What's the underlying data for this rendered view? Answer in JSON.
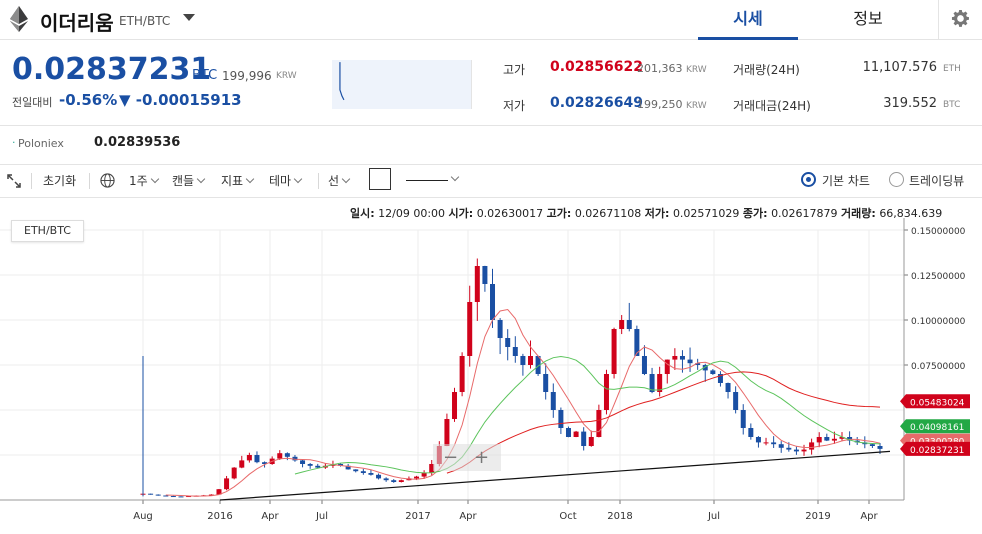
{
  "header": {
    "coin_name": "이더리움",
    "pair": "ETH/BTC",
    "tabs": [
      {
        "label": "시세"
      },
      {
        "label": "정보"
      }
    ]
  },
  "price": {
    "main": "0.02837231",
    "unit": "BTC",
    "krw": "199,996",
    "krw_unit": "KRW",
    "change_label": "전일대비",
    "change_pct": "-0.56%",
    "change_abs": "▼ -0.00015913"
  },
  "stats": {
    "high_label": "고가",
    "high_btc": "0.02856622",
    "high_krw": "201,363",
    "low_label": "저가",
    "low_btc": "0.02826649",
    "low_krw": "199,250",
    "krw_unit": "KRW",
    "volume_label": "거래량(24H)",
    "volume_value": "11,107.576",
    "volume_unit": "ETH",
    "amount_label": "거래대금(24H)",
    "amount_value": "319.552",
    "amount_unit": "BTC"
  },
  "exchange": {
    "name": "Poloniex",
    "price": "0.02839536"
  },
  "toolbar": {
    "reset": "초기화",
    "interval": "1주",
    "candle": "캔들",
    "indicator": "지표",
    "theme": "테마",
    "line": "선",
    "basic_chart": "기본 차트",
    "tradingview": "트레이딩뷰"
  },
  "ohlc": {
    "date_label": "일시:",
    "date": "12/09 00:00",
    "open_label": "시가:",
    "open": "0.02630017",
    "high_label": "고가:",
    "high": "0.02671108",
    "low_label": "저가:",
    "low": "0.02571029",
    "close_label": "종가:",
    "close": "0.02617879",
    "volume_label": "거래량:",
    "volume": "66,834.639"
  },
  "chart_data": {
    "type": "candlestick",
    "pair_label": "ETH/BTC",
    "x_ticks": [
      "Aug",
      "2016",
      "Apr",
      "Jul",
      "2017",
      "Apr",
      "Oct",
      "2018",
      "Jul",
      "2019",
      "Apr"
    ],
    "y_ticks": [
      "0.15000000",
      "0.12500000",
      "0.10000000",
      "0.07500000"
    ],
    "ylim": [
      0,
      0.15
    ],
    "price_tags": [
      {
        "value": "0.05483024",
        "color": "#d0021b"
      },
      {
        "value": "0.04098161",
        "color": "#22a845"
      },
      {
        "value": "0.03300280",
        "color": "#e86a6a"
      },
      {
        "value": "0.02837231",
        "color": "#d0021b"
      }
    ],
    "close_series": [
      0.0035,
      0.003,
      0.0025,
      0.0022,
      0.002,
      0.0018,
      0.0022,
      0.0024,
      0.0026,
      0.003,
      0.006,
      0.012,
      0.018,
      0.022,
      0.025,
      0.021,
      0.02,
      0.023,
      0.026,
      0.024,
      0.022,
      0.02,
      0.019,
      0.018,
      0.019,
      0.02,
      0.019,
      0.017,
      0.016,
      0.015,
      0.014,
      0.012,
      0.011,
      0.01,
      0.011,
      0.012,
      0.013,
      0.015,
      0.02,
      0.03,
      0.045,
      0.06,
      0.08,
      0.11,
      0.13,
      0.12,
      0.1,
      0.09,
      0.085,
      0.08,
      0.075,
      0.08,
      0.07,
      0.06,
      0.05,
      0.04,
      0.035,
      0.038,
      0.03,
      0.035,
      0.05,
      0.07,
      0.095,
      0.1,
      0.095,
      0.08,
      0.07,
      0.06,
      0.07,
      0.078,
      0.08,
      0.078,
      0.076,
      0.075,
      0.072,
      0.07,
      0.065,
      0.06,
      0.05,
      0.04,
      0.035,
      0.032,
      0.032,
      0.031,
      0.029,
      0.028,
      0.027,
      0.028,
      0.032,
      0.035,
      0.033,
      0.034,
      0.035,
      0.033,
      0.032,
      0.031,
      0.03,
      0.0284
    ]
  }
}
